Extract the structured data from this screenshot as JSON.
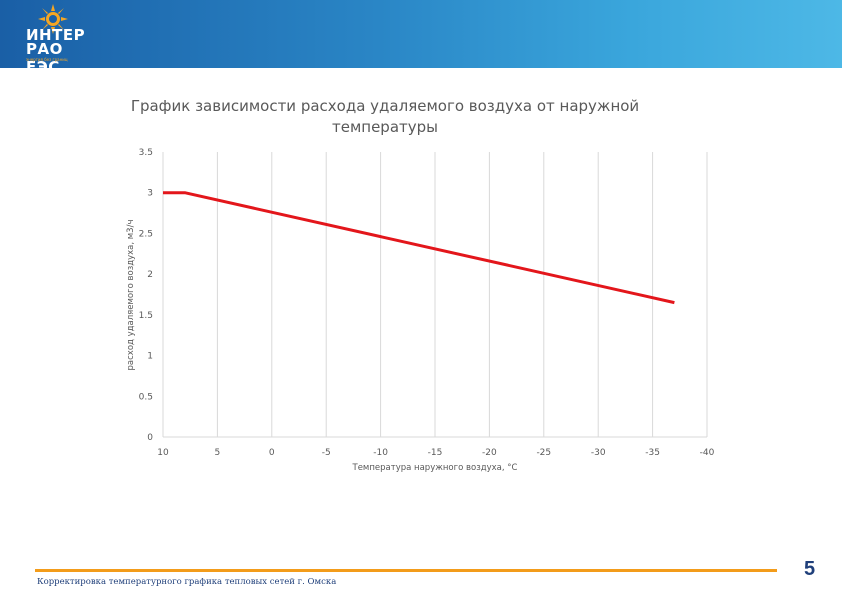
{
  "header": {
    "logo_line1": "ИНТЕР",
    "logo_line2": "РАО ЕЭС",
    "logo_tagline": "энергия без границ",
    "colors": {
      "band_start": "#1a5fa6",
      "band_end": "#4db8e6",
      "accent": "#f39c1a"
    }
  },
  "chart_data": {
    "type": "line",
    "title": "График зависимости расхода удаляемого воздуха от наружной температуры",
    "xlabel": "Температура наружного воздуха, °С",
    "ylabel": "расход удаляемого воздуха, м3/ч",
    "x_ticks": [
      "10",
      "5",
      "0",
      "-5",
      "-10",
      "-15",
      "-20",
      "-25",
      "-30",
      "-35",
      "-40"
    ],
    "y_ticks": [
      "0",
      "0.5",
      "1",
      "1.5",
      "2",
      "2.5",
      "3",
      "3.5"
    ],
    "xlim": [
      10,
      -40
    ],
    "ylim": [
      0,
      3.5
    ],
    "grid": "vertical",
    "series": [
      {
        "color": "#e3161b",
        "x": [
          10,
          8,
          -37
        ],
        "y": [
          3.0,
          3.0,
          1.65
        ]
      }
    ]
  },
  "footer": {
    "text": "Корректировка температурного графика тепловых сетей г. Омска",
    "page_number": "5"
  }
}
